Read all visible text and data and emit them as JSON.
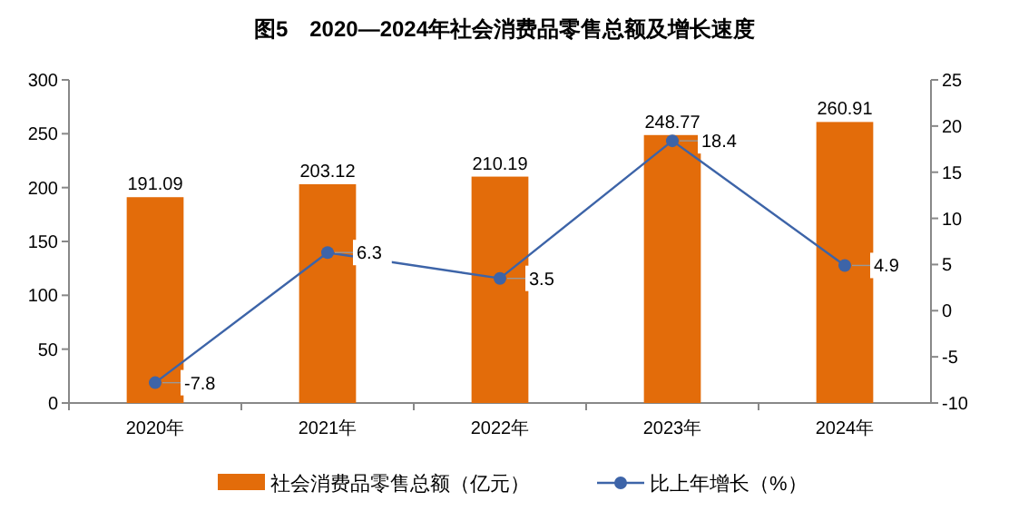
{
  "chart_data": {
    "type": "bar",
    "title": "图5　2020—2024年社会消费品零售总额及增长速度",
    "categories": [
      "2020年",
      "2021年",
      "2022年",
      "2023年",
      "2024年"
    ],
    "series": [
      {
        "name": "社会消费品零售总额（亿元）",
        "color": "#e36c0a",
        "values": [
          191.09,
          203.12,
          210.19,
          248.77,
          260.91
        ]
      },
      {
        "name": "比上年增长（%）",
        "type": "line",
        "axis": "y2",
        "color": "#3d64a8",
        "values": [
          -7.8,
          6.3,
          3.5,
          18.4,
          4.9
        ]
      }
    ],
    "ylim": [
      0,
      300
    ],
    "yticks": [
      0,
      50,
      100,
      150,
      200,
      250,
      300
    ],
    "y2lim": [
      -10,
      25
    ],
    "y2ticks": [
      -10,
      -5,
      0,
      5,
      10,
      15,
      20,
      25
    ],
    "data_labels": true,
    "legend": "bottom",
    "marker": "circle",
    "grid": false
  }
}
